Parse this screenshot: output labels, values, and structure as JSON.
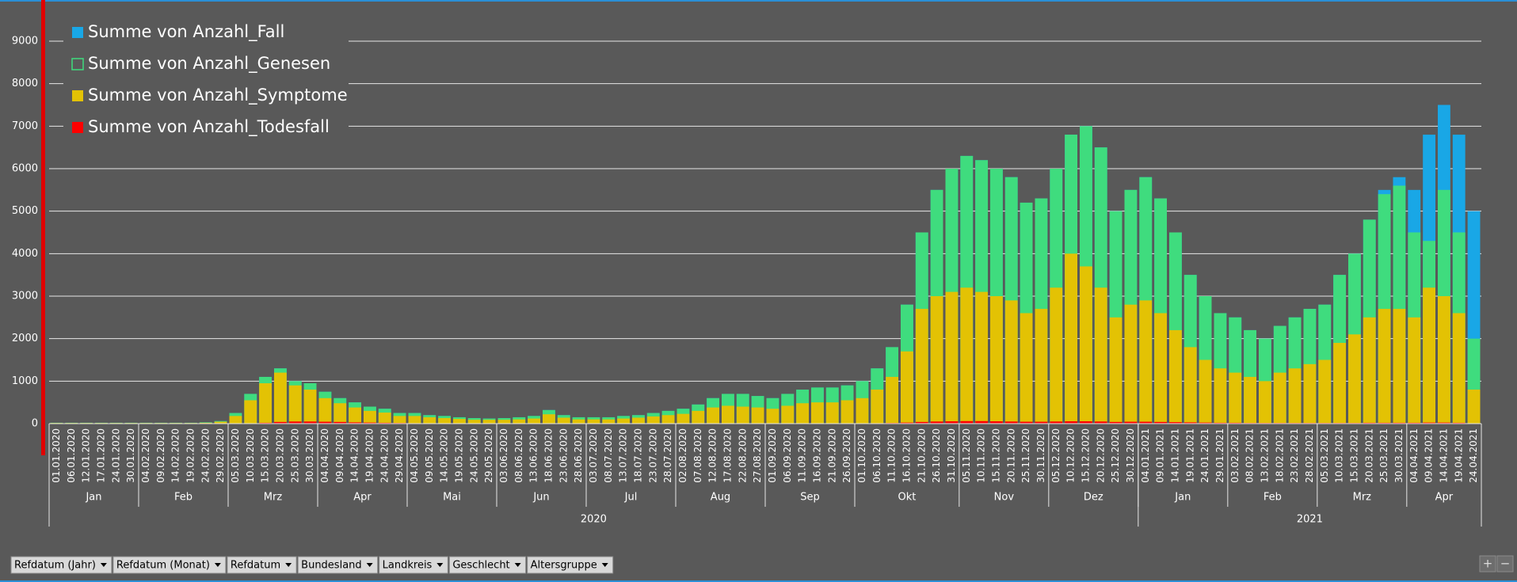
{
  "chart_data": {
    "type": "bar",
    "series": [
      {
        "name": "Summe von Anzahl_Fall",
        "color": "#19a7e6",
        "legend_marker": "filled",
        "values": [
          20,
          20,
          20,
          20,
          20,
          20,
          20,
          20,
          20,
          20,
          30,
          60,
          250,
          700,
          1100,
          1300,
          1000,
          950,
          750,
          600,
          500,
          400,
          350,
          250,
          250,
          200,
          180,
          150,
          130,
          120,
          130,
          150,
          180,
          320,
          200,
          150,
          150,
          150,
          180,
          200,
          250,
          300,
          350,
          450,
          600,
          700,
          700,
          650,
          600,
          700,
          800,
          850,
          850,
          900,
          1000,
          1300,
          1800,
          2800,
          4500,
          5500,
          6000,
          6300,
          6200,
          6000,
          5800,
          5200,
          5300,
          6000,
          6800,
          7000,
          6500,
          5000,
          5500,
          5800,
          5300,
          4500,
          3500,
          3000,
          2600,
          2500,
          2200,
          2000,
          2300,
          2500,
          2700,
          2800,
          3500,
          4000,
          4800,
          5500,
          5800,
          5500,
          6800,
          7500,
          6800,
          5000
        ]
      },
      {
        "name": "Summe von Anzahl_Genesen",
        "color": "#3fdc7e",
        "legend_marker": "hollow",
        "values": [
          20,
          20,
          20,
          20,
          20,
          20,
          20,
          20,
          20,
          20,
          30,
          60,
          250,
          700,
          1100,
          1300,
          1000,
          950,
          750,
          600,
          500,
          400,
          350,
          250,
          250,
          200,
          180,
          150,
          130,
          120,
          130,
          150,
          180,
          320,
          200,
          150,
          150,
          150,
          180,
          200,
          250,
          300,
          350,
          450,
          600,
          700,
          700,
          650,
          600,
          700,
          800,
          850,
          850,
          900,
          1000,
          1300,
          1800,
          2800,
          4500,
          5500,
          6000,
          6300,
          6200,
          6000,
          5800,
          5200,
          5300,
          6000,
          6800,
          7000,
          6500,
          5000,
          5500,
          5800,
          5300,
          4500,
          3500,
          3000,
          2600,
          2500,
          2200,
          2000,
          2300,
          2500,
          2700,
          2800,
          3500,
          4000,
          4800,
          5400,
          5600,
          4500,
          4300,
          5500,
          4500,
          2000
        ]
      },
      {
        "name": "Summe von Anzahl_Symptome",
        "color": "#e3c204",
        "legend_marker": "filled",
        "values": [
          15,
          15,
          15,
          15,
          15,
          15,
          15,
          15,
          15,
          15,
          20,
          45,
          180,
          550,
          950,
          1200,
          900,
          800,
          600,
          480,
          380,
          300,
          260,
          180,
          180,
          150,
          130,
          110,
          90,
          90,
          90,
          100,
          120,
          220,
          140,
          100,
          100,
          100,
          120,
          140,
          170,
          200,
          230,
          300,
          380,
          420,
          400,
          380,
          350,
          420,
          480,
          500,
          500,
          550,
          600,
          800,
          1100,
          1700,
          2700,
          3000,
          3100,
          3200,
          3100,
          3000,
          2900,
          2600,
          2700,
          3200,
          4000,
          3700,
          3200,
          2500,
          2800,
          2900,
          2600,
          2200,
          1800,
          1500,
          1300,
          1200,
          1100,
          1000,
          1200,
          1300,
          1400,
          1500,
          1900,
          2100,
          2500,
          2700,
          2700,
          2500,
          3200,
          3000,
          2600,
          800
        ]
      },
      {
        "name": "Summe von Anzahl_Todesfall",
        "color": "#ff0000",
        "legend_marker": "filled",
        "values": [
          0,
          0,
          0,
          0,
          0,
          0,
          0,
          0,
          0,
          0,
          0,
          0,
          0,
          5,
          20,
          40,
          50,
          50,
          45,
          40,
          30,
          25,
          20,
          15,
          10,
          8,
          6,
          5,
          4,
          3,
          3,
          3,
          2,
          2,
          2,
          2,
          2,
          2,
          2,
          2,
          2,
          2,
          2,
          3,
          3,
          3,
          3,
          3,
          3,
          3,
          4,
          5,
          5,
          6,
          8,
          10,
          15,
          25,
          40,
          50,
          55,
          60,
          60,
          55,
          50,
          45,
          45,
          50,
          55,
          55,
          50,
          40,
          45,
          45,
          40,
          35,
          30,
          25,
          20,
          20,
          15,
          15,
          15,
          15,
          15,
          15,
          15,
          15,
          20,
          20,
          20,
          20,
          25,
          25,
          20,
          5
        ]
      }
    ],
    "axis_groups": [
      {
        "label": "2020",
        "months": [
          {
            "label": "Jan",
            "days": [
              "01.01.2020",
              "06.01.2020",
              "12.01.2020",
              "17.01.2020",
              "24.01.2020",
              "30.01.2020"
            ]
          },
          {
            "label": "Feb",
            "days": [
              "04.02.2020",
              "09.02.2020",
              "14.02.2020",
              "19.02.2020",
              "24.02.2020",
              "29.02.2020"
            ]
          },
          {
            "label": "Mrz",
            "days": [
              "05.03.2020",
              "10.03.2020",
              "15.03.2020",
              "20.03.2020",
              "25.03.2020",
              "30.03.2020"
            ]
          },
          {
            "label": "Apr",
            "days": [
              "04.04.2020",
              "09.04.2020",
              "14.04.2020",
              "19.04.2020",
              "24.04.2020",
              "29.04.2020"
            ]
          },
          {
            "label": "Mai",
            "days": [
              "04.05.2020",
              "09.05.2020",
              "14.05.2020",
              "19.05.2020",
              "24.05.2020",
              "29.05.2020"
            ]
          },
          {
            "label": "Jun",
            "days": [
              "03.06.2020",
              "08.06.2020",
              "13.06.2020",
              "18.06.2020",
              "23.06.2020",
              "28.06.2020"
            ]
          },
          {
            "label": "Jul",
            "days": [
              "03.07.2020",
              "08.07.2020",
              "13.07.2020",
              "18.07.2020",
              "23.07.2020",
              "28.07.2020"
            ]
          },
          {
            "label": "Aug",
            "days": [
              "02.08.2020",
              "07.08.2020",
              "12.08.2020",
              "17.08.2020",
              "22.08.2020",
              "27.08.2020"
            ]
          },
          {
            "label": "Sep",
            "days": [
              "01.09.2020",
              "06.09.2020",
              "11.09.2020",
              "16.09.2020",
              "21.09.2020",
              "26.09.2020"
            ]
          },
          {
            "label": "Okt",
            "days": [
              "01.10.2020",
              "06.10.2020",
              "11.10.2020",
              "16.10.2020",
              "21.10.2020",
              "26.10.2020",
              "31.10.2020"
            ]
          },
          {
            "label": "Nov",
            "days": [
              "05.11.2020",
              "10.11.2020",
              "15.11.2020",
              "20.11.2020",
              "25.11.2020",
              "30.11.2020"
            ]
          },
          {
            "label": "Dez",
            "days": [
              "05.12.2020",
              "10.12.2020",
              "15.12.2020",
              "20.12.2020",
              "25.12.2020",
              "30.12.2020"
            ]
          }
        ]
      },
      {
        "label": "2021",
        "months": [
          {
            "label": "Jan",
            "days": [
              "04.01.2021",
              "09.01.2021",
              "14.01.2021",
              "19.01.2021",
              "24.01.2021",
              "29.01.2021"
            ]
          },
          {
            "label": "Feb",
            "days": [
              "03.02.2021",
              "08.02.2021",
              "13.02.2021",
              "18.02.2021",
              "23.02.2021",
              "28.02.2021"
            ]
          },
          {
            "label": "Mrz",
            "days": [
              "05.03.2021",
              "10.03.2021",
              "15.03.2021",
              "20.03.2021",
              "25.03.2021",
              "30.03.2021"
            ]
          },
          {
            "label": "Apr",
            "days": [
              "04.04.2021",
              "09.04.2021",
              "14.04.2021",
              "19.04.2021",
              "24.04.2021"
            ]
          }
        ]
      }
    ],
    "ylim": [
      0,
      9000
    ],
    "yticks": [
      0,
      1000,
      2000,
      3000,
      4000,
      5000,
      6000,
      7000,
      8000,
      9000
    ],
    "grid": true,
    "legend": "upper left"
  },
  "filter_buttons": [
    "Refdatum (Jahr)",
    "Refdatum (Monat)",
    "Refdatum",
    "Bundesland",
    "Landkreis",
    "Geschlecht",
    "Altersgruppe"
  ],
  "zoom_buttons": [
    "+",
    "−"
  ]
}
